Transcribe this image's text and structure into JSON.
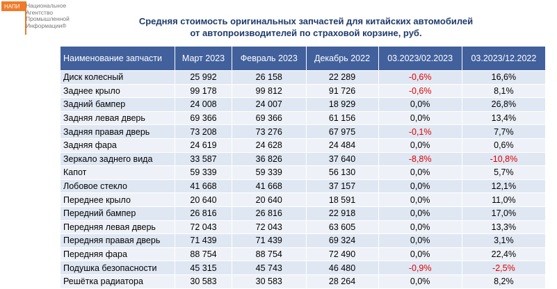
{
  "logo": {
    "badge": "НАПИ",
    "lines": [
      "Национальное",
      "Агентство",
      "Промышленной",
      "Информации®"
    ]
  },
  "header": {
    "title_lines": [
      "Средняя стоимость оригинальных запчастей для китайских автомобилей",
      "от автопроизводителей по страховой корзине,  руб."
    ]
  },
  "negative_color": "#e00000",
  "table": {
    "header": [
      "Наименование запчасти",
      "Март 2023",
      "Февраль 2023",
      "Декабрь 2022",
      "03.2023/02.2023",
      "03.2023/12.2022"
    ],
    "rows": [
      [
        "Диск колесный",
        "25 992",
        "26 158",
        "22 289",
        "-0,6%",
        "16,6%"
      ],
      [
        "Заднее крыло",
        "99 178",
        "99 812",
        "91 726",
        "-0,6%",
        "8,1%"
      ],
      [
        "Задний бампер",
        "24 008",
        "24 007",
        "18 929",
        "0,0%",
        "26,8%"
      ],
      [
        "Задняя левая дверь",
        "69 366",
        "69 366",
        "61 156",
        "0,0%",
        "13,4%"
      ],
      [
        "Задняя правая дверь",
        "73 208",
        "73 276",
        "67 975",
        "-0,1%",
        "7,7%"
      ],
      [
        "Задняя фара",
        "24 619",
        "24 628",
        "24 484",
        "0,0%",
        "0,6%"
      ],
      [
        "Зеркало заднего вида",
        "33 587",
        "36 826",
        "37 640",
        "-8,8%",
        "-10,8%"
      ],
      [
        "Капот",
        "59 339",
        "59 339",
        "56 130",
        "0,0%",
        "5,7%"
      ],
      [
        "Лобовое стекло",
        "41 668",
        "41 668",
        "37 157",
        "0,0%",
        "12,1%"
      ],
      [
        "Переднее крыло",
        "20 640",
        "20 640",
        "18 591",
        "0,0%",
        "11,0%"
      ],
      [
        "Передний бампер",
        "26 816",
        "26 816",
        "22 918",
        "0,0%",
        "17,0%"
      ],
      [
        "Передняя левая дверь",
        "72 043",
        "72 043",
        "63 605",
        "0,0%",
        "13,3%"
      ],
      [
        "Передняя правая дверь",
        "71 439",
        "71 439",
        "69 324",
        "0,0%",
        "3,1%"
      ],
      [
        "Передняя фара",
        "88 754",
        "88 754",
        "72 490",
        "0,0%",
        "22,4%"
      ],
      [
        "Подушка безопасности",
        "45 315",
        "45 743",
        "46 480",
        "-0,9%",
        "-2,5%"
      ],
      [
        "Решётка радиатора",
        "30 583",
        "30 583",
        "28 264",
        "0,0%",
        "8,2%"
      ]
    ]
  }
}
